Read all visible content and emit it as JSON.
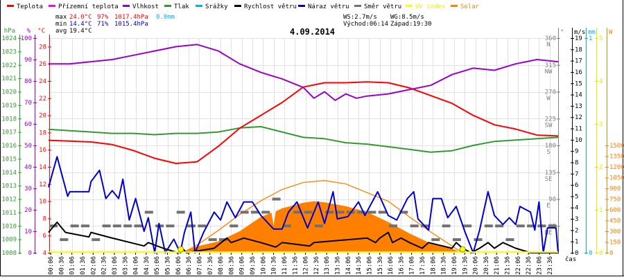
{
  "legend": [
    {
      "label": "Teplota",
      "color": "#ff0000"
    },
    {
      "label": "Přízemní teplota",
      "color": "#ff00ff"
    },
    {
      "label": "Vlhkost",
      "color": "#9900cc"
    },
    {
      "label": "Tlak",
      "color": "#339933"
    },
    {
      "label": "Srážky",
      "color": "#00b0f0"
    },
    {
      "label": "Rychlost větru",
      "color": "#000000"
    },
    {
      "label": "Náraz větru",
      "color": "#0000cc"
    },
    {
      "label": "Směr větru",
      "color": "#707070"
    },
    {
      "label": "UV index",
      "color": "#ffff00"
    },
    {
      "label": "Solar",
      "color": "#ff8000"
    }
  ],
  "stats": {
    "max_label": "max",
    "max_temp": "24.0°C",
    "max_hum": "97%",
    "max_press": "1017.4hPa",
    "rain": "0.0mm",
    "min_label": "min",
    "min_temp": "14.4°C",
    "min_hum": "71%",
    "min_press": "1015.4hPa",
    "avg_label": "avg",
    "avg_temp": "19.4°C",
    "ws": "WS:2.7m/s",
    "wg": "WG:8.5m/s",
    "sunrise": "Východ:06:14",
    "sunset": "Západ:19:30"
  },
  "chart_data": {
    "type": "line",
    "title": "4.09.2014",
    "xlabel": "čas",
    "x_tick_labels": [
      "00:06",
      "00:36",
      "01:06",
      "01:36",
      "02:06",
      "02:36",
      "03:06",
      "03:36",
      "04:06",
      "04:36",
      "05:06",
      "05:36",
      "06:06",
      "06:36",
      "07:06",
      "07:36",
      "08:06",
      "08:36",
      "09:06",
      "09:36",
      "10:06",
      "10:36",
      "11:06",
      "11:36",
      "12:06",
      "12:36",
      "13:06",
      "13:36",
      "14:06",
      "14:36",
      "15:06",
      "15:36",
      "16:06",
      "16:36",
      "17:06",
      "17:36",
      "18:06",
      "18:36",
      "19:06",
      "19:36",
      "20:06",
      "20:36",
      "21:06",
      "21:36",
      "22:06",
      "22:36",
      "23:06",
      "23:36"
    ],
    "xlim_hours": [
      0,
      24
    ],
    "axes": {
      "pressure": {
        "title": "hPa",
        "range": [
          1008,
          1024
        ],
        "ticks": [
          1008,
          1009,
          1010,
          1011,
          1012,
          1013,
          1014,
          1015,
          1016,
          1017,
          1018,
          1019,
          1020,
          1021,
          1022,
          1023,
          1024
        ],
        "color": "#339933"
      },
      "humidity": {
        "title": "%",
        "range": [
          0,
          100
        ],
        "ticks": [
          0,
          10,
          20,
          30,
          40,
          50,
          60,
          70,
          80,
          90,
          100
        ],
        "color": "#9900cc"
      },
      "temperature": {
        "title": "°C",
        "range": [
          4,
          29
        ],
        "ticks": [
          4,
          6,
          8,
          10,
          12,
          14,
          16,
          18,
          20,
          22,
          24,
          26,
          28
        ],
        "color": "#ff0000"
      },
      "direction": {
        "title": "°",
        "range": [
          0,
          360
        ],
        "ticks": [
          45,
          90,
          135,
          180,
          225,
          270,
          315,
          360
        ],
        "compass": [
          "NE",
          "E",
          "SE",
          "S",
          "SW",
          "W",
          "NW",
          "N"
        ],
        "color": "#808080"
      },
      "wind": {
        "title": "m/s",
        "range": [
          0,
          19
        ],
        "ticks": [
          0,
          1,
          2,
          3,
          4,
          5,
          6,
          7,
          8,
          9,
          10,
          11,
          12,
          13,
          14,
          15,
          16,
          17,
          18,
          19
        ],
        "color": "#000000"
      },
      "rain": {
        "title": "mm",
        "range": [
          0,
          1
        ],
        "ticks": [
          0,
          1
        ],
        "color": "#00b0f0"
      },
      "uv": {
        "title": "",
        "range": [
          0,
          5
        ],
        "ticks": [
          0,
          1,
          2,
          3,
          4,
          5
        ],
        "color": "#e8e800"
      },
      "solar": {
        "title": "W",
        "range": [
          0,
          3000
        ],
        "ticks": [
          0,
          150,
          300,
          450,
          600,
          750,
          900,
          1050,
          1200,
          1350,
          1500
        ],
        "color": "#ff8000"
      }
    },
    "series": [
      {
        "name": "Teplota",
        "axis": "temperature",
        "color": "#ff0000",
        "x": [
          0,
          1,
          2,
          3,
          4,
          5,
          6,
          7,
          8,
          9,
          10,
          11,
          12,
          13,
          14,
          15,
          16,
          17,
          18,
          19,
          20,
          21,
          22,
          23,
          24
        ],
        "values": [
          17.1,
          17.0,
          16.9,
          16.6,
          15.9,
          15.0,
          14.4,
          14.6,
          16.4,
          18.5,
          20.0,
          21.5,
          23.3,
          23.8,
          23.8,
          23.9,
          23.8,
          23.2,
          22.3,
          21.4,
          20.0,
          18.9,
          18.4,
          17.7,
          17.6
        ]
      },
      {
        "name": "Vlhkost",
        "axis": "humidity",
        "color": "#9900cc",
        "x": [
          0,
          1,
          2,
          3,
          4,
          5,
          6,
          7,
          8,
          9,
          10,
          11,
          12,
          12.5,
          13,
          13.5,
          14,
          14.5,
          15,
          16,
          17,
          18,
          19,
          20,
          21,
          22,
          23,
          24
        ],
        "values": [
          88,
          88,
          89,
          90,
          92,
          94,
          96,
          97,
          94,
          88,
          84,
          81,
          77,
          72,
          75,
          71,
          74,
          72,
          73,
          74,
          76,
          78,
          83,
          86,
          85,
          88,
          90,
          89
        ]
      },
      {
        "name": "Tlak",
        "axis": "pressure",
        "color": "#339933",
        "x": [
          0,
          1,
          2,
          3,
          4,
          5,
          6,
          7,
          8,
          9,
          10,
          11,
          12,
          13,
          14,
          15,
          16,
          17,
          18,
          19,
          20,
          21,
          22,
          23,
          24
        ],
        "values": [
          1017.2,
          1017.1,
          1017.0,
          1016.9,
          1016.9,
          1016.8,
          1016.9,
          1016.9,
          1017.0,
          1017.3,
          1017.4,
          1017.0,
          1016.6,
          1016.5,
          1016.2,
          1016.1,
          1015.9,
          1015.7,
          1015.5,
          1015.6,
          1016.0,
          1016.3,
          1016.4,
          1016.5,
          1016.6
        ]
      },
      {
        "name": "Náraz větru",
        "axis": "wind",
        "color": "#0000cc",
        "x": [
          0,
          0.4,
          0.9,
          1.0,
          1.9,
          2.0,
          2.4,
          2.7,
          3.0,
          3.3,
          3.5,
          3.8,
          4.1,
          4.5,
          4.7,
          5.0,
          5.2,
          5.5,
          5.9,
          6.2,
          6.4,
          6.7,
          6.9,
          7.3,
          7.8,
          8.1,
          8.4,
          8.8,
          9.2,
          9.6,
          10.0,
          10.6,
          11.0,
          11.3,
          11.7,
          12.2,
          12.7,
          13.0,
          13.4,
          13.6,
          14.1,
          14.6,
          14.9,
          15.5,
          16.0,
          16.4,
          16.9,
          17.2,
          17.4,
          17.9,
          18.1,
          18.5,
          18.8,
          19.2,
          19.6,
          20.0,
          20.3,
          20.7,
          21.0,
          21.4,
          21.7,
          22.0,
          22.2,
          22.7,
          22.9,
          23.1,
          23.3,
          23.5,
          23.9,
          24
        ],
        "values": [
          5.8,
          8.5,
          5.0,
          5.4,
          5.4,
          6.3,
          7.3,
          4.8,
          5.5,
          4.8,
          6.5,
          2.9,
          4.8,
          1.9,
          3.1,
          0,
          2.6,
          0,
          1.2,
          0,
          1.8,
          3.6,
          0,
          1.8,
          3.6,
          2.9,
          4.5,
          3.1,
          4.5,
          4.5,
          3.3,
          2.1,
          2.1,
          3.6,
          4.5,
          2.2,
          4.5,
          2.6,
          5.4,
          3.0,
          3.2,
          4.5,
          3.3,
          5.4,
          3.3,
          2.9,
          4.8,
          5.4,
          3.0,
          2.0,
          4.8,
          4.8,
          3.1,
          4.1,
          1.9,
          0,
          2.0,
          5.4,
          3.3,
          2.5,
          3.1,
          2.5,
          4.1,
          3.6,
          2.0,
          4.5,
          0,
          2.2,
          2.2,
          0
        ]
      },
      {
        "name": "Rychlost větru",
        "axis": "wind",
        "color": "#000000",
        "x": [
          0,
          0.4,
          0.8,
          1.9,
          2.0,
          2.9,
          4.5,
          4.7,
          5.4,
          6.1,
          6.3,
          6.5,
          7.8,
          8.4,
          8.6,
          9.2,
          10.0,
          10.7,
          11.0,
          12.3,
          12.5,
          15.0,
          15.4,
          15.6,
          16.0,
          16.2,
          16.6,
          17.0,
          17.6,
          17.9,
          19.0,
          19.2,
          19.5,
          19.9,
          20.3,
          20.7,
          21.0,
          21.4,
          22.0,
          22.7,
          24
        ],
        "values": [
          1.8,
          2.7,
          1.8,
          1.4,
          1.8,
          1.35,
          0.6,
          0.9,
          0.4,
          0,
          0.4,
          0,
          0.4,
          1.3,
          0.9,
          1.3,
          0.9,
          0.5,
          0.9,
          0.6,
          0.9,
          1.3,
          0.9,
          1.3,
          1.8,
          0.9,
          1.3,
          0.9,
          0.4,
          0.9,
          0.4,
          0.9,
          0.4,
          0,
          0.4,
          0.9,
          0.4,
          0.9,
          0.4,
          0,
          0
        ]
      },
      {
        "name": "Směr větru",
        "axis": "direction",
        "color": "#707070",
        "type": "dash",
        "x": [
          0,
          0.5,
          1,
          1.5,
          2,
          2.5,
          3,
          3.5,
          4,
          4.5,
          5,
          5.5,
          6,
          6.5,
          7,
          7.5,
          8,
          8.5,
          9,
          9.5,
          10,
          10.5,
          11,
          11.5,
          12,
          12.5,
          13,
          13.5,
          14,
          14.5,
          15,
          15.5,
          16,
          16.5,
          17,
          17.5,
          18,
          18.5,
          19,
          19.5,
          20,
          20.5,
          21,
          21.5,
          22,
          22.5,
          23,
          23.5
        ],
        "values": [
          45,
          22,
          45,
          45,
          22,
          45,
          45,
          45,
          45,
          68,
          45,
          45,
          68,
          45,
          45,
          22,
          22,
          45,
          68,
          68,
          68,
          90,
          45,
          68,
          68,
          45,
          68,
          68,
          68,
          68,
          68,
          68,
          45,
          68,
          45,
          45,
          22,
          45,
          22,
          45,
          22,
          45,
          45,
          22,
          45,
          45,
          45,
          45
        ]
      },
      {
        "name": "Solar",
        "axis": "solar",
        "color": "#ff8000",
        "type": "area",
        "x": [
          6.2,
          6.5,
          7,
          8,
          9,
          10,
          10.5,
          10.6,
          10.7,
          11,
          12,
          12.5,
          13,
          14,
          15,
          16,
          17,
          18,
          19,
          19.5
        ],
        "values": [
          0,
          30,
          90,
          160,
          300,
          500,
          560,
          380,
          580,
          620,
          700,
          720,
          705,
          650,
          570,
          430,
          270,
          130,
          55,
          0
        ]
      },
      {
        "name": "Solar max",
        "axis": "solar",
        "color": "#ff8000",
        "x": [
          6.23,
          6.5,
          7,
          8,
          9,
          10,
          11,
          12,
          13,
          14,
          15,
          16,
          17,
          18,
          19,
          19.5
        ],
        "values": [
          0,
          28,
          109,
          313,
          534,
          727,
          885,
          982,
          1009,
          962,
          840,
          720,
          500,
          290,
          95,
          0
        ]
      },
      {
        "name": "UV index",
        "axis": "uv",
        "color": "#ffff00",
        "x": [
          0,
          24
        ],
        "values": [
          0,
          0
        ]
      },
      {
        "name": "Srážky",
        "axis": "rain",
        "color": "#00b0f0",
        "x": [
          0,
          24
        ],
        "values": [
          0,
          0
        ]
      }
    ],
    "sun_markers_hours": [
      6.23,
      19.5
    ],
    "grid": true
  }
}
